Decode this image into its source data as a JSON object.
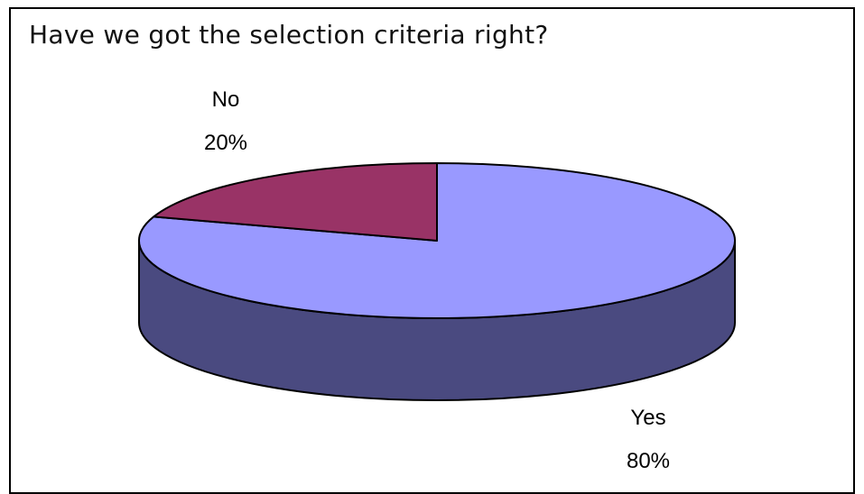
{
  "chart_data": {
    "type": "pie",
    "title": "Have we got the selection criteria right?",
    "slices": [
      {
        "name": "Yes",
        "value": 80,
        "label": "80%",
        "color": "#9999ff",
        "side_color": "#4a4a80"
      },
      {
        "name": "No",
        "value": 20,
        "label": "20%",
        "color": "#993366",
        "side_color": "#5a1e3c"
      }
    ],
    "style": "3d",
    "legend": "none"
  }
}
